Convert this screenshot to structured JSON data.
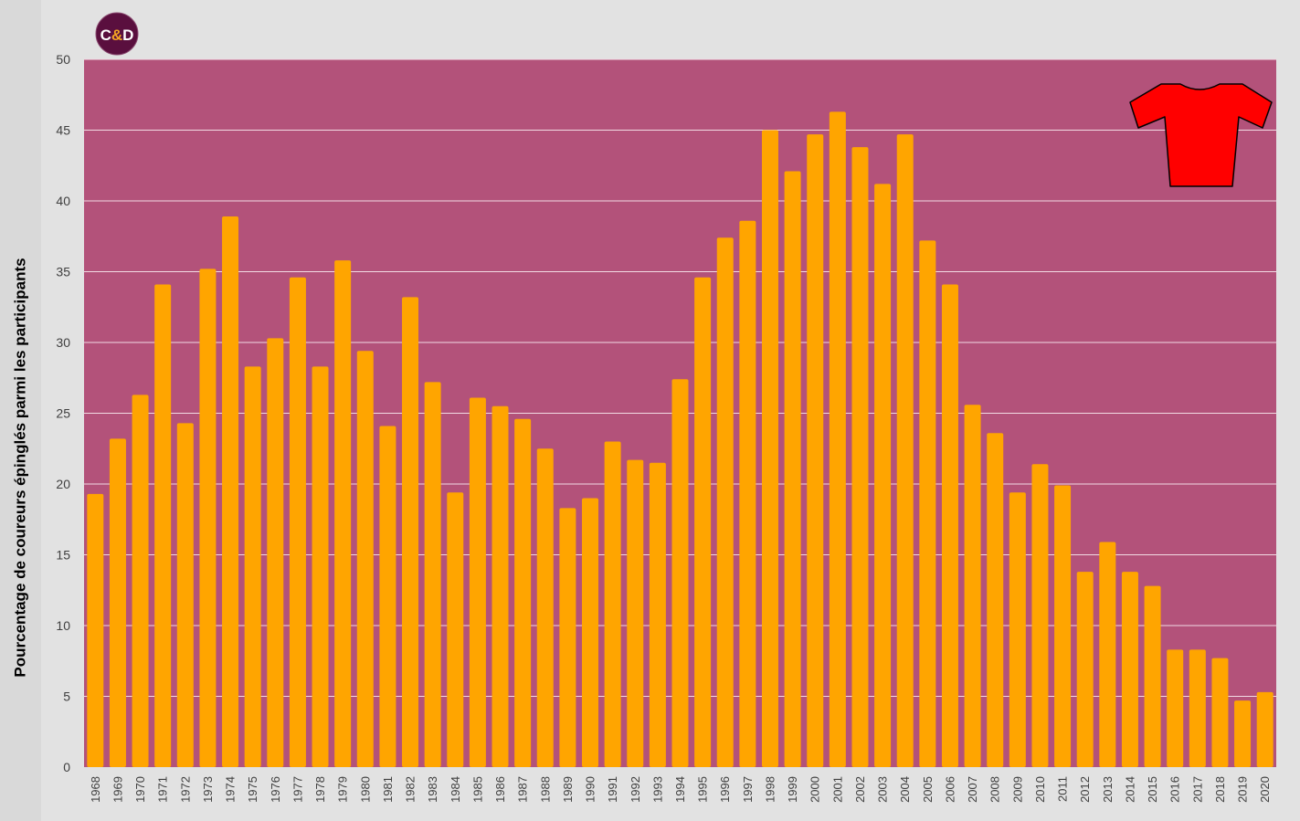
{
  "logo": {
    "text": "C&D",
    "icon": "cd-logo-icon"
  },
  "jersey": {
    "icon": "red-jersey-icon",
    "color": "#ff0000"
  },
  "colors": {
    "page_bg": "#d9d9d9",
    "chart_bg": "#e2e2e2",
    "plot_bg": "#b3527a",
    "bar": "#ffa500",
    "grid": "#f2dbe4",
    "logo_bg": "#5a0f3e",
    "logo_amp": "#f5a623"
  },
  "chart_data": {
    "type": "bar",
    "title": "",
    "xlabel": "",
    "ylabel": "Pourcentage de coureurs épinglés parmi les participants",
    "ylim": [
      0,
      50
    ],
    "yticks": [
      0,
      5,
      10,
      15,
      20,
      25,
      30,
      35,
      40,
      45,
      50
    ],
    "grid": true,
    "categories": [
      "1968",
      "1969",
      "1970",
      "1971",
      "1972",
      "1973",
      "1974",
      "1975",
      "1976",
      "1977",
      "1978",
      "1979",
      "1980",
      "1981",
      "1982",
      "1983",
      "1984",
      "1985",
      "1986",
      "1987",
      "1988",
      "1989",
      "1990",
      "1991",
      "1992",
      "1993",
      "1994",
      "1995",
      "1996",
      "1997",
      "1998",
      "1999",
      "2000",
      "2001",
      "2002",
      "2003",
      "2004",
      "2005",
      "2006",
      "2007",
      "2008",
      "2009",
      "2010",
      "2011",
      "2012",
      "2013",
      "2014",
      "2015",
      "2016",
      "2017",
      "2018",
      "2019",
      "2020"
    ],
    "values": [
      19.3,
      23.2,
      26.3,
      34.1,
      24.3,
      35.2,
      38.9,
      28.3,
      30.3,
      34.6,
      28.3,
      35.8,
      29.4,
      24.1,
      33.2,
      27.2,
      19.4,
      26.1,
      25.5,
      24.6,
      22.5,
      18.3,
      19.0,
      23.0,
      21.7,
      21.5,
      27.4,
      34.6,
      37.4,
      38.6,
      45.0,
      42.1,
      44.7,
      46.3,
      43.8,
      41.2,
      44.7,
      37.2,
      34.1,
      25.6,
      23.6,
      19.4,
      21.4,
      19.9,
      13.8,
      15.9,
      13.8,
      12.8,
      8.3,
      8.3,
      7.7,
      4.7,
      5.3
    ]
  }
}
